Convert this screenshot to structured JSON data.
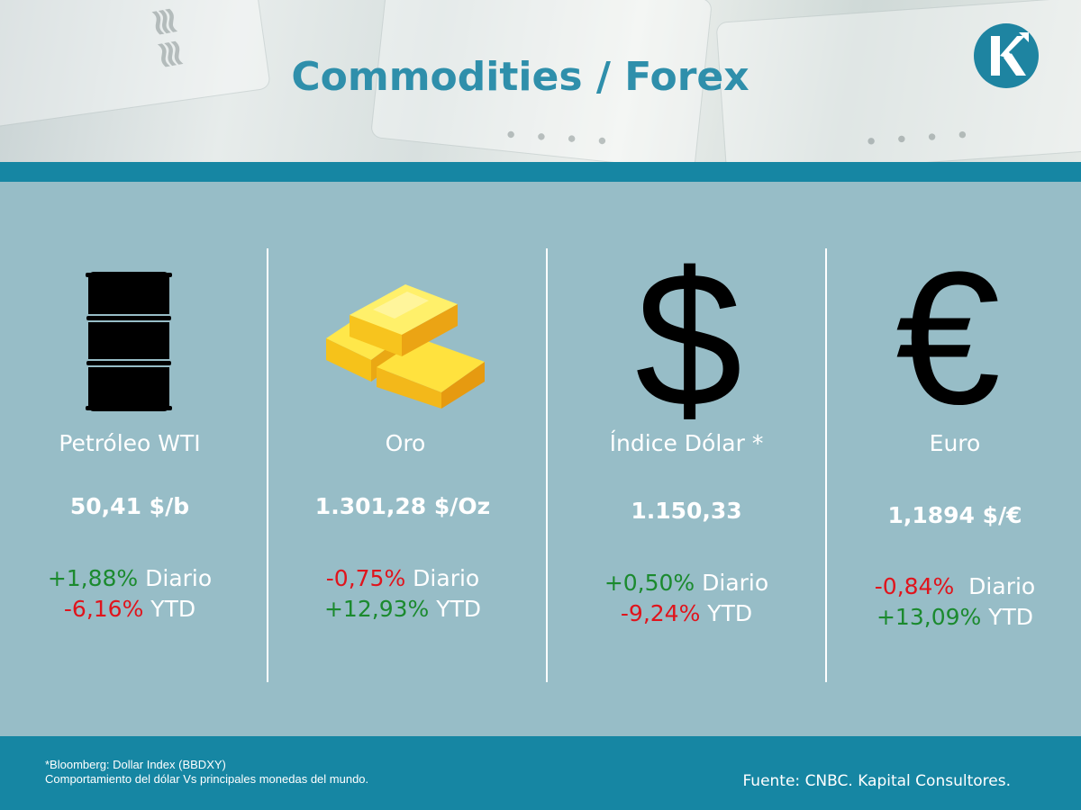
{
  "header": {
    "title": "Commodities / Forex",
    "logo": "kapital-logo-icon",
    "background": "dollar-bills-photo"
  },
  "colors": {
    "teal": "#1686a3",
    "panel": "#97bdc7",
    "title": "#2f8fab",
    "positive": "#1b8a2e",
    "negative": "#e0141c"
  },
  "items": [
    {
      "icon": "oil-barrel-icon",
      "name": "Petróleo WTI",
      "price": "50,41 $/b",
      "daily_change": "+1,88%",
      "daily_label": "Diario",
      "ytd_change": "-6,16%",
      "ytd_label": "YTD"
    },
    {
      "icon": "gold-bars-icon",
      "name": "Oro",
      "price": "1.301,28 $/Oz",
      "daily_change": "-0,75%",
      "daily_label": "Diario",
      "ytd_change": "+12,93%",
      "ytd_label": "YTD"
    },
    {
      "icon": "dollar-sign-icon",
      "symbol": "$",
      "name": "Índice Dólar *",
      "price": "1.150,33",
      "daily_change": "+0,50%",
      "daily_label": "Diario",
      "ytd_change": "-9,24%",
      "ytd_label": "YTD"
    },
    {
      "icon": "euro-sign-icon",
      "symbol": "€",
      "name": "Euro",
      "price": "1,1894 $/€",
      "daily_change": "-0,84%",
      "daily_label": "Diario",
      "ytd_change": "+13,09%",
      "ytd_label": "YTD"
    }
  ],
  "footer": {
    "note_line1": "*Bloomberg: Dollar Index (BBDXY)",
    "note_line2": "Comportamiento del dólar Vs principales monedas del mundo.",
    "source": "Fuente: CNBC. Kapital Consultores."
  }
}
